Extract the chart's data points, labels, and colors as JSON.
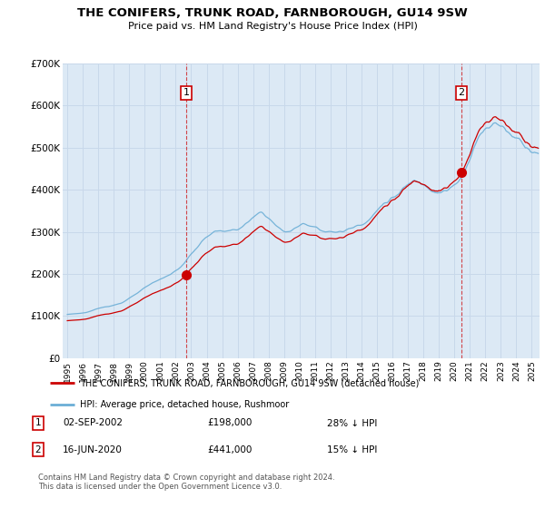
{
  "title": "THE CONIFERS, TRUNK ROAD, FARNBOROUGH, GU14 9SW",
  "subtitle": "Price paid vs. HM Land Registry's House Price Index (HPI)",
  "plot_bg_color": "#dce9f5",
  "grid_color": "#c8d8ea",
  "ylim": [
    0,
    700000
  ],
  "yticks": [
    0,
    100000,
    200000,
    300000,
    400000,
    500000,
    600000,
    700000
  ],
  "ytick_labels": [
    "£0",
    "£100K",
    "£200K",
    "£300K",
    "£400K",
    "£500K",
    "£600K",
    "£700K"
  ],
  "legend_line1": "THE CONIFERS, TRUNK ROAD, FARNBOROUGH, GU14 9SW (detached house)",
  "legend_line2": "HPI: Average price, detached house, Rushmoor",
  "sale1_date": "02-SEP-2002",
  "sale1_price": 198000,
  "sale1_hpi_pct": "28% ↓ HPI",
  "sale2_date": "16-JUN-2020",
  "sale2_price": 441000,
  "sale2_hpi_pct": "15% ↓ HPI",
  "footer": "Contains HM Land Registry data © Crown copyright and database right 2024.\nThis data is licensed under the Open Government Licence v3.0.",
  "hpi_color": "#6baed6",
  "property_color": "#cc0000",
  "sale1_x": 2002.67,
  "sale1_y": 198000,
  "sale2_x": 2020.46,
  "sale2_y": 441000,
  "xlim_left": 1994.7,
  "xlim_right": 2025.5,
  "xtick_years": [
    1995,
    1996,
    1997,
    1998,
    1999,
    2000,
    2001,
    2002,
    2003,
    2004,
    2005,
    2006,
    2007,
    2008,
    2009,
    2010,
    2011,
    2012,
    2013,
    2014,
    2015,
    2016,
    2017,
    2018,
    2019,
    2020,
    2021,
    2022,
    2023,
    2024,
    2025
  ]
}
